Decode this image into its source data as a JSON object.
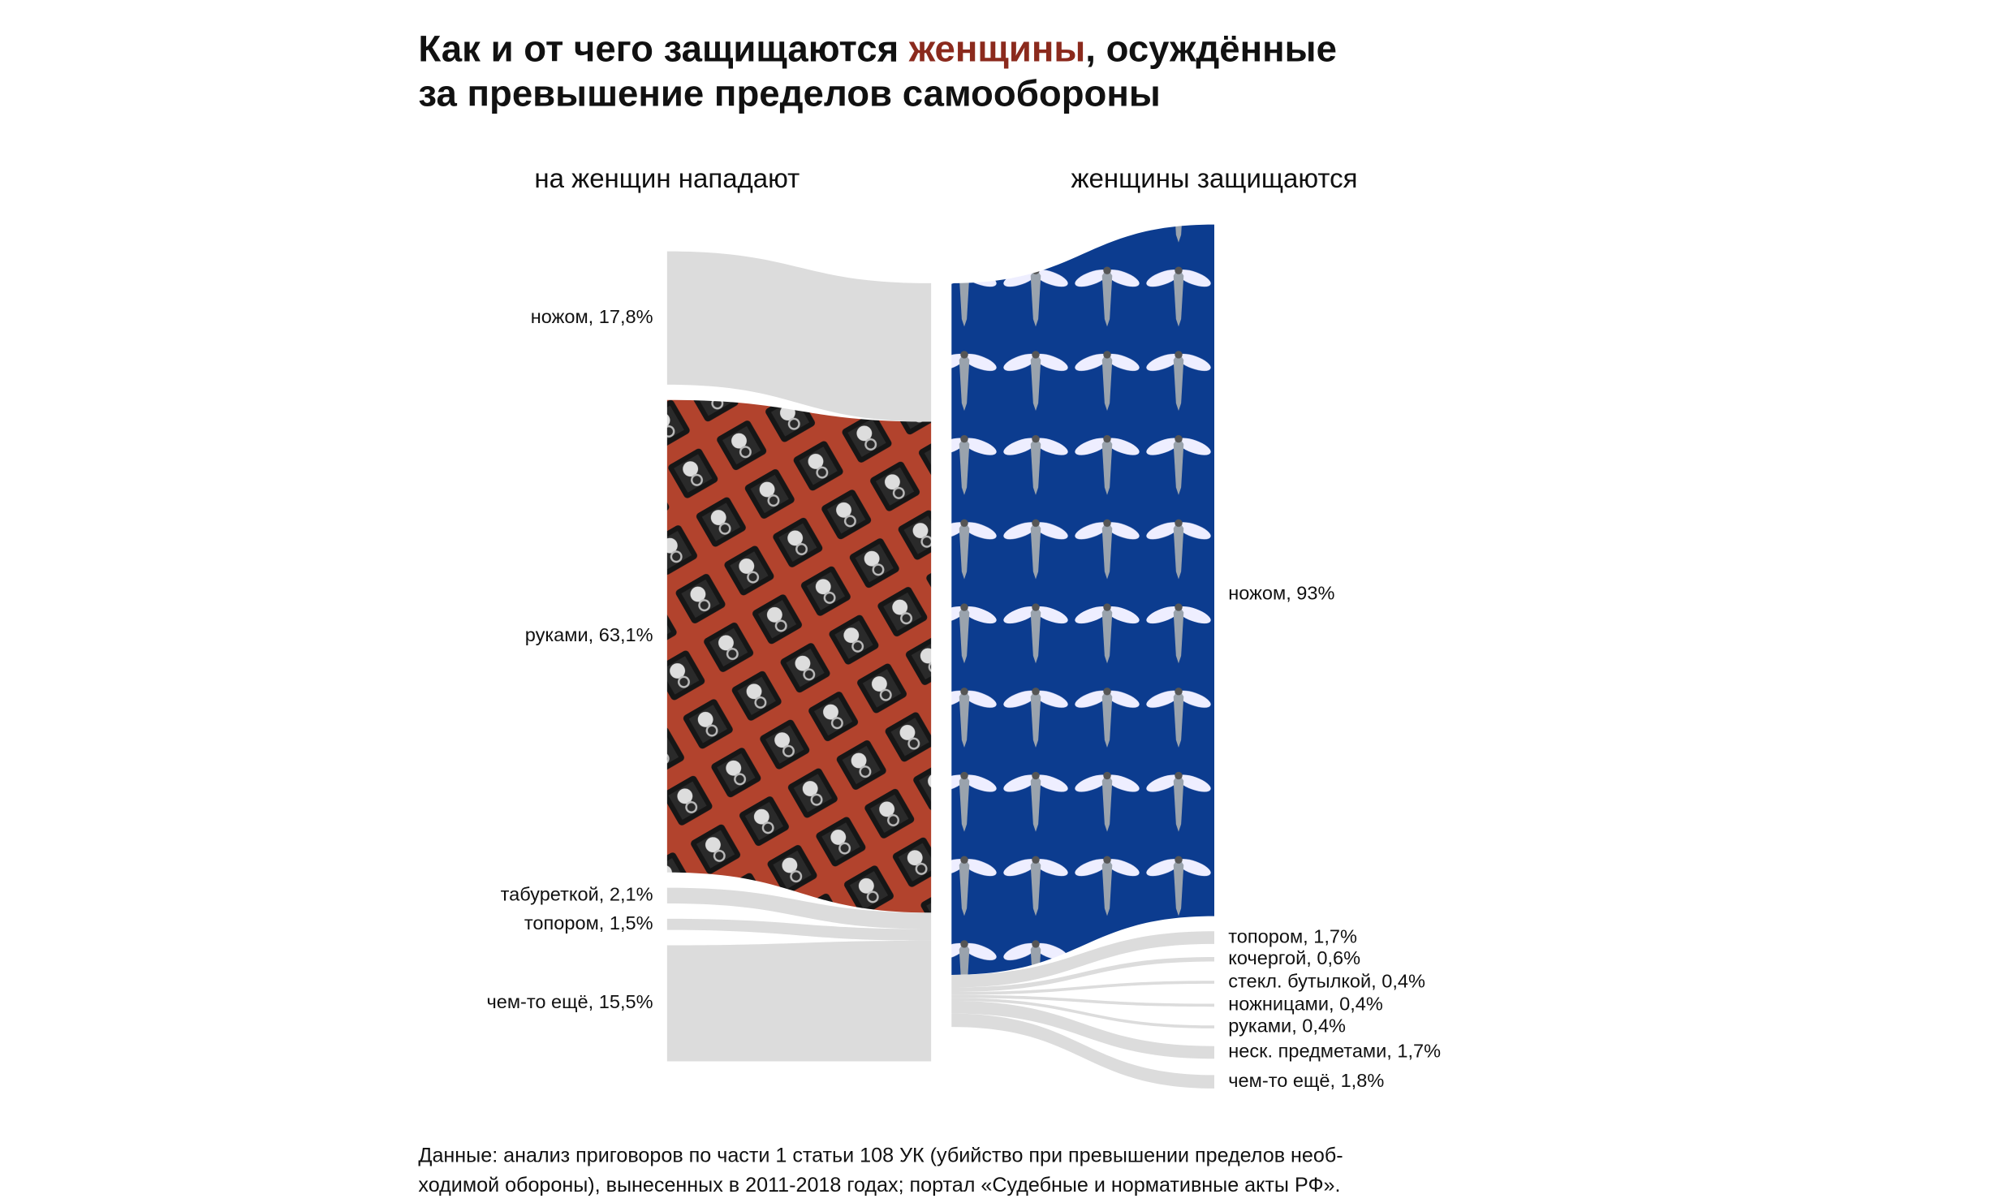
{
  "chart_data": {
    "type": "sankey",
    "title": {
      "before": "Как и от чего защищаются ",
      "highlight": "женщины",
      "after": ", осуждённые",
      "line2": "за превышение пределов самообороны"
    },
    "series": [
      {
        "name": "на женщин нападают",
        "values": [
          17.8,
          63.1,
          2.1,
          1.5,
          15.5
        ],
        "value_labels": [
          "ножом, 17,8%",
          "руками, 63,1%",
          "табуреткой, 2,1%",
          "топором, 1,5%",
          "чем-то ещё, 15,5%"
        ],
        "colors": [
          "#dcdcdc",
          "url(#redpat)",
          "#dcdcdc",
          "#dcdcdc",
          "#dcdcdc"
        ]
      },
      {
        "name": "женщины защищаются",
        "values": [
          93,
          1.7,
          0.6,
          0.4,
          0.4,
          0.4,
          1.7,
          1.8
        ],
        "value_labels": [
          "ножом, 93%",
          "топором, 1,7%",
          "кочергой, 0,6%",
          "стекл. бутылкой, 0,4%",
          "ножницами, 0,4%",
          "руками, 0,4%",
          "неск. предметами, 1,7%",
          "чем-то ещё, 1,8%"
        ],
        "colors": [
          "url(#bluepat)",
          "#dcdcdc",
          "#dcdcdc",
          "#dcdcdc",
          "#dcdcdc",
          "#dcdcdc",
          "#dcdcdc",
          "#dcdcdc"
        ]
      }
    ],
    "footnote": [
      "Данные: анализ приговоров по части 1 статьи 108 УК (убийство при превышении пределов необ-",
      "ходимой обороны), вынесенных в 2011-2018 годах; портал «Судебные и нормативные акты РФ»."
    ]
  }
}
